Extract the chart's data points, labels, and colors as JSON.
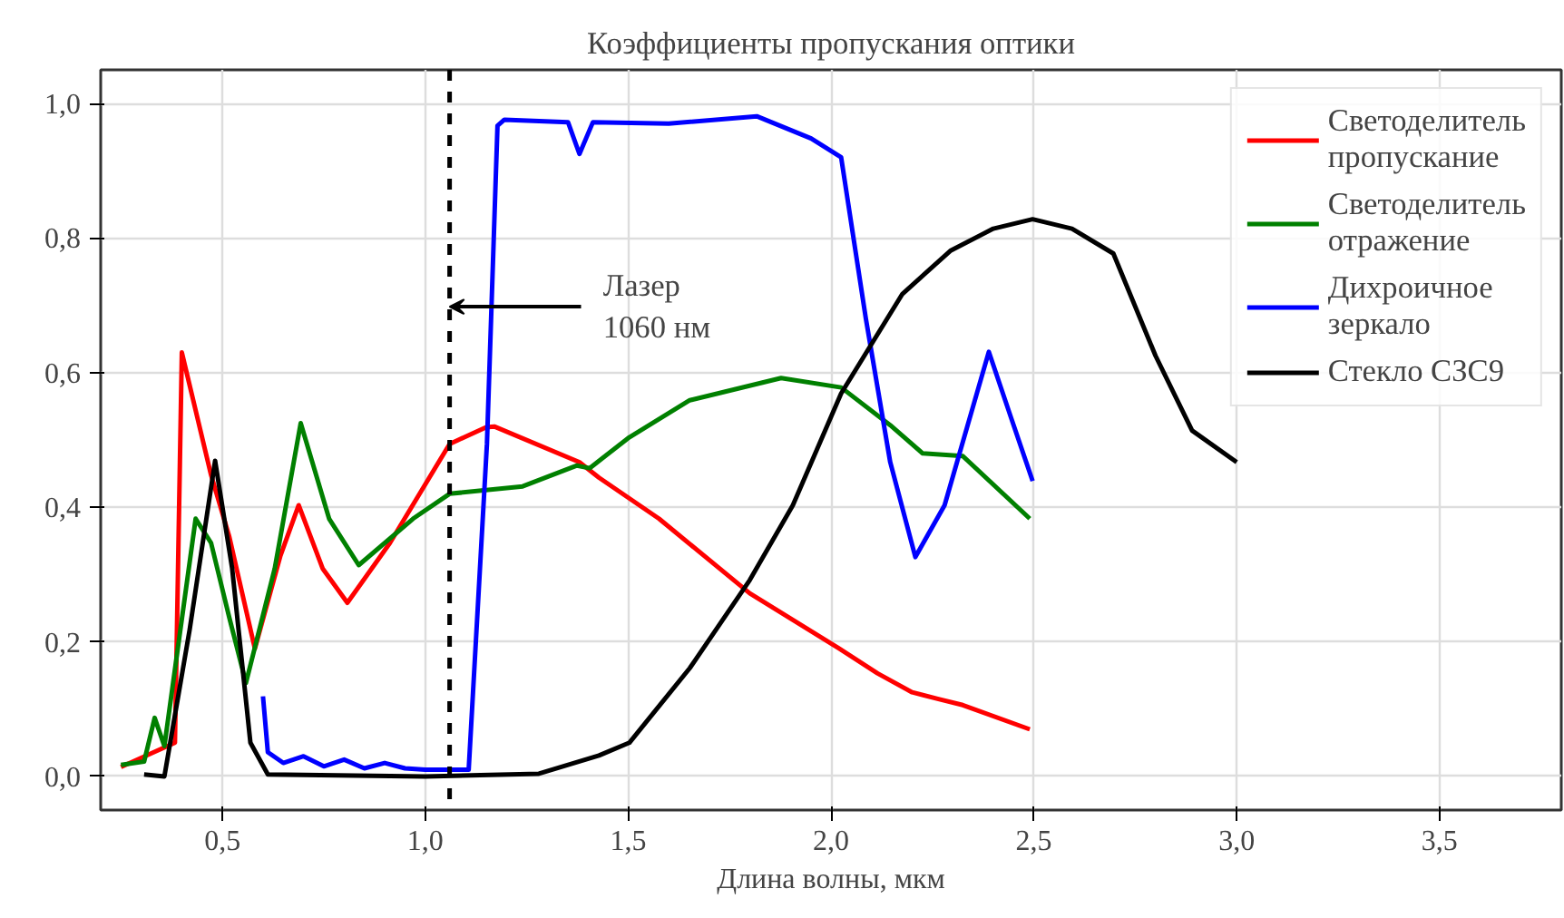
{
  "chart_data": {
    "type": "line",
    "title": "Коэффициенты пропускания оптики",
    "xlabel": "Длина волны, мкм",
    "xlim": [
      0.2,
      3.8
    ],
    "ylim": [
      -0.05,
      1.05
    ],
    "xticks": [
      {
        "value": 0.5,
        "label": "0,5"
      },
      {
        "value": 1.0,
        "label": "1,0"
      },
      {
        "value": 1.5,
        "label": "1,5"
      },
      {
        "value": 2.0,
        "label": "2,0"
      },
      {
        "value": 2.5,
        "label": "2,5"
      },
      {
        "value": 3.0,
        "label": "3,0"
      },
      {
        "value": 3.5,
        "label": "3,5"
      }
    ],
    "yticks": [
      {
        "value": 0.0,
        "label": "0,0"
      },
      {
        "value": 0.2,
        "label": "0,2"
      },
      {
        "value": 0.4,
        "label": "0,4"
      },
      {
        "value": 0.6,
        "label": "0,6"
      },
      {
        "value": 0.8,
        "label": "0,8"
      },
      {
        "value": 1.0,
        "label": "1,0"
      }
    ],
    "grid": true,
    "legend": "top right",
    "marker": "none",
    "line_style": "solid",
    "series": [
      {
        "name": "Светоделитель\nпропускание",
        "color": "#ff0000",
        "x": [
          0.25,
          0.383,
          0.4,
          0.472,
          0.517,
          0.58,
          0.643,
          0.688,
          0.747,
          0.808,
          0.913,
          1.06,
          1.15,
          1.17,
          1.38,
          1.428,
          1.576,
          1.8,
          2.02,
          2.115,
          2.2,
          2.265,
          2.325,
          2.49
        ],
        "values": [
          0.014,
          0.05,
          0.63,
          0.448,
          0.356,
          0.19,
          0.328,
          0.403,
          0.309,
          0.258,
          0.347,
          0.494,
          0.519,
          0.52,
          0.467,
          0.444,
          0.383,
          0.272,
          0.19,
          0.153,
          0.125,
          0.115,
          0.106,
          0.07
        ]
      },
      {
        "name": "Светоделитель\nотражение",
        "color": "#008000",
        "x": [
          0.25,
          0.307,
          0.333,
          0.357,
          0.434,
          0.472,
          0.517,
          0.558,
          0.629,
          0.693,
          0.763,
          0.836,
          0.97,
          1.06,
          1.24,
          1.374,
          1.405,
          1.503,
          1.652,
          1.877,
          2.025,
          2.146,
          2.226,
          2.325,
          2.49
        ],
        "values": [
          0.017,
          0.022,
          0.087,
          0.045,
          0.383,
          0.347,
          0.236,
          0.139,
          0.309,
          0.525,
          0.383,
          0.314,
          0.383,
          0.42,
          0.431,
          0.462,
          0.458,
          0.504,
          0.559,
          0.592,
          0.578,
          0.522,
          0.48,
          0.476,
          0.383
        ]
      },
      {
        "name": "Дихроичное\nзеркало",
        "color": "#0000ff",
        "x": [
          0.6,
          0.612,
          0.65,
          0.7,
          0.75,
          0.8,
          0.85,
          0.9,
          0.95,
          1.0,
          1.107,
          1.152,
          1.178,
          1.195,
          1.352,
          1.38,
          1.413,
          1.6,
          1.817,
          1.951,
          2.025,
          2.086,
          2.146,
          2.208,
          2.28,
          2.389,
          2.445,
          2.497
        ],
        "values": [
          0.119,
          0.036,
          0.02,
          0.03,
          0.015,
          0.025,
          0.012,
          0.02,
          0.012,
          0.01,
          0.01,
          0.494,
          0.967,
          0.976,
          0.972,
          0.925,
          0.972,
          0.97,
          0.981,
          0.948,
          0.92,
          0.68,
          0.467,
          0.326,
          0.403,
          0.631,
          0.531,
          0.439
        ]
      },
      {
        "name": "Стекло СЗС9",
        "color": "#000000",
        "x": [
          0.307,
          0.357,
          0.419,
          0.482,
          0.524,
          0.569,
          0.612,
          1.0,
          1.28,
          1.428,
          1.503,
          1.652,
          1.8,
          1.906,
          2.025,
          2.176,
          2.294,
          2.4,
          2.497,
          2.594,
          2.696,
          2.8,
          2.89,
          3.0
        ],
        "values": [
          0.003,
          0.0,
          0.217,
          0.469,
          0.309,
          0.05,
          0.003,
          0.0,
          0.004,
          0.031,
          0.05,
          0.161,
          0.292,
          0.403,
          0.569,
          0.717,
          0.781,
          0.814,
          0.828,
          0.814,
          0.777,
          0.625,
          0.514,
          0.467
        ]
      }
    ],
    "ref_lines": [
      {
        "axis": "x",
        "value": 1.06,
        "color": "#000000",
        "line_style": "dashed",
        "label": "Лазер\n1060 нм"
      }
    ]
  }
}
